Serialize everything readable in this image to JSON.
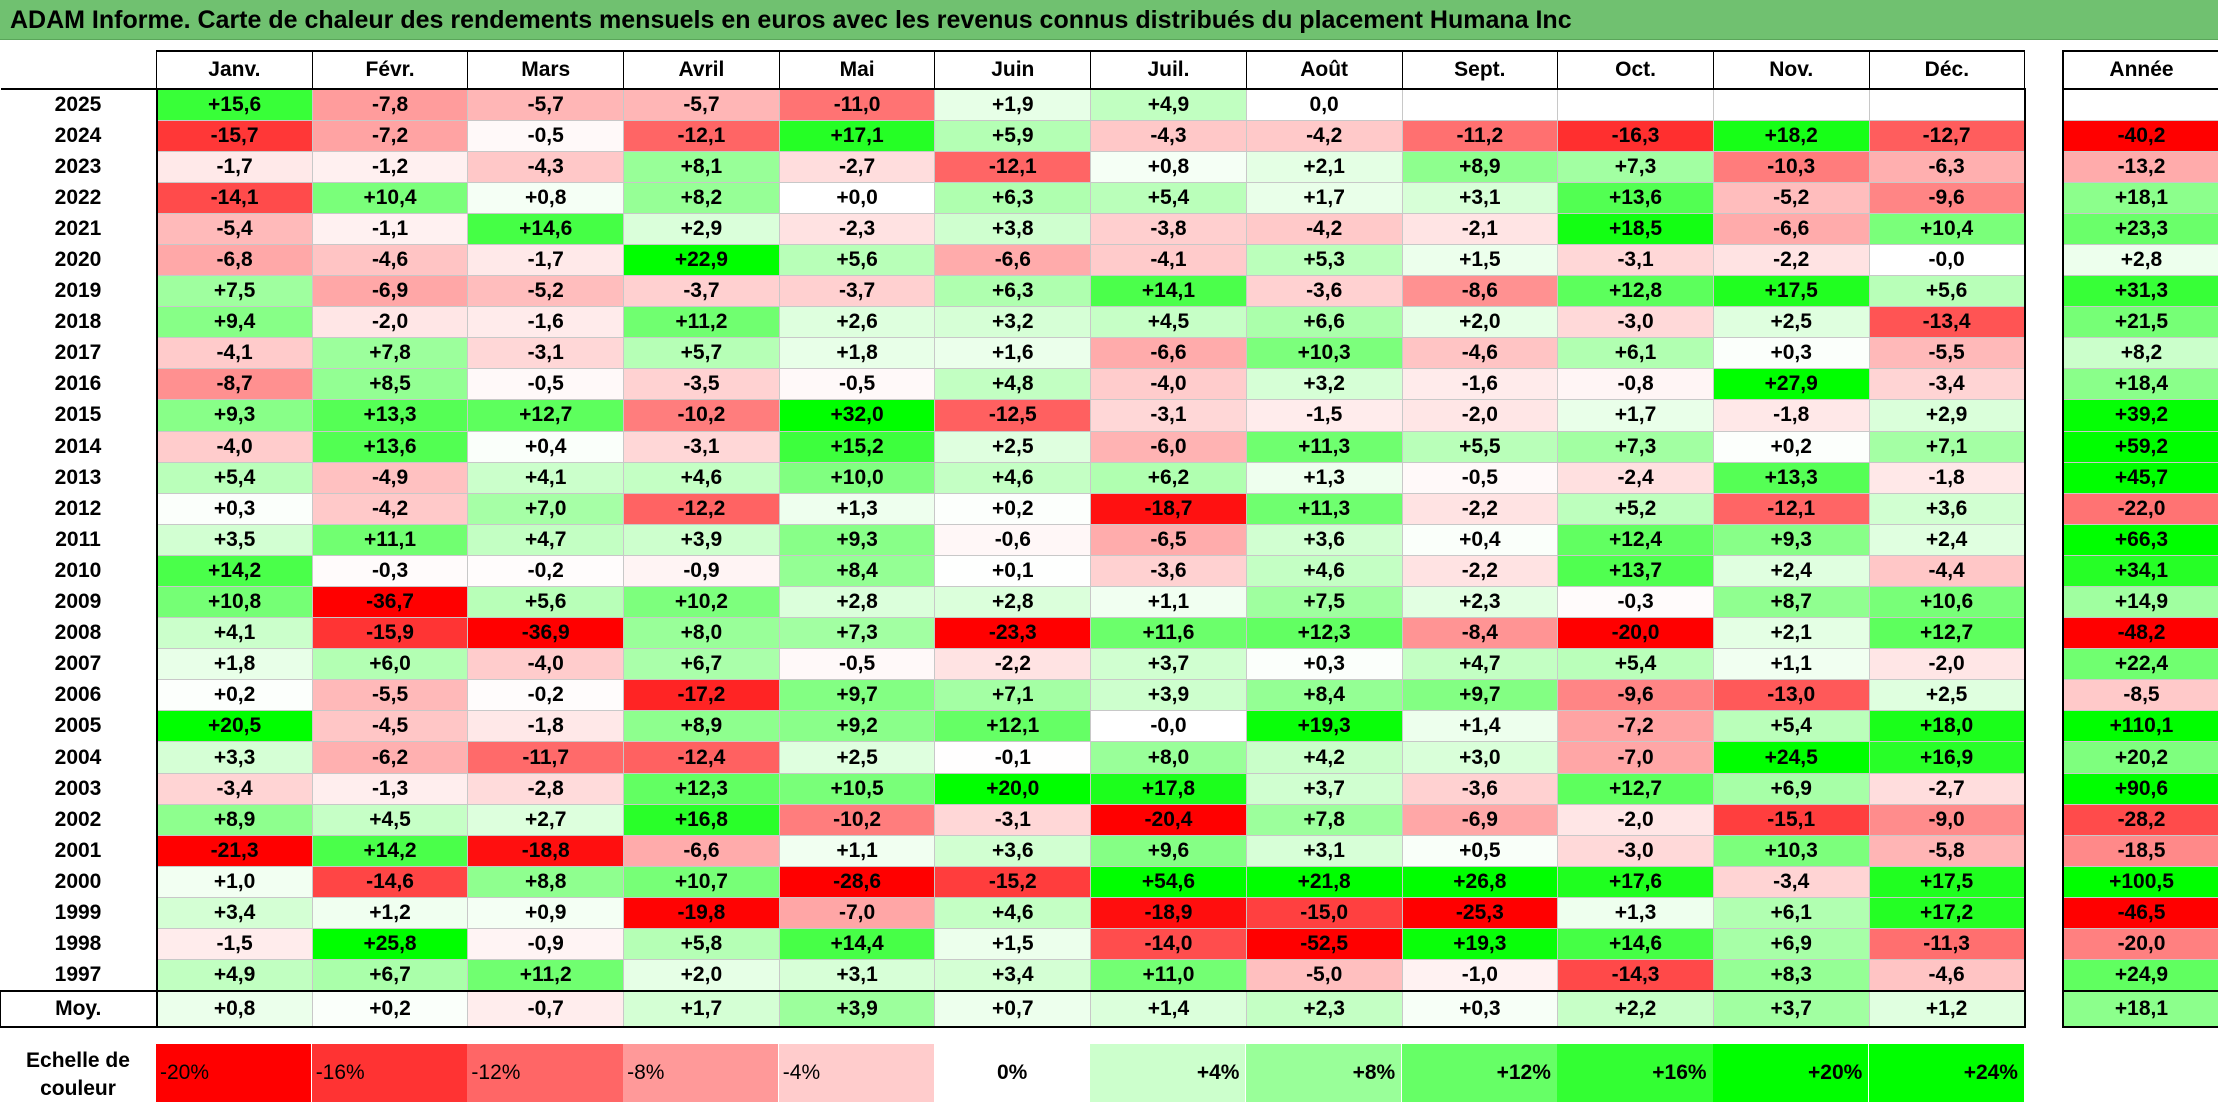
{
  "title": "ADAM Informe. Carte de chaleur des rendements mensuels en euros avec les revenus connus distribués du placement Humana Inc",
  "chart_data": {
    "type": "heatmap",
    "columns": [
      "Janv.",
      "Févr.",
      "Mars",
      "Avril",
      "Mai",
      "Juin",
      "Juil.",
      "Août",
      "Sept.",
      "Oct.",
      "Nov.",
      "Déc."
    ],
    "annual_header": "Année",
    "rows": [
      {
        "year": "2025",
        "values": [
          "+15,6",
          "-7,8",
          "-5,7",
          "-5,7",
          "-11,0",
          "+1,9",
          "+4,9",
          "0,0",
          "",
          "",
          "",
          ""
        ],
        "annual": ""
      },
      {
        "year": "2024",
        "values": [
          "-15,7",
          "-7,2",
          "-0,5",
          "-12,1",
          "+17,1",
          "+5,9",
          "-4,3",
          "-4,2",
          "-11,2",
          "-16,3",
          "+18,2",
          "-12,7"
        ],
        "annual": "-40,2"
      },
      {
        "year": "2023",
        "values": [
          "-1,7",
          "-1,2",
          "-4,3",
          "+8,1",
          "-2,7",
          "-12,1",
          "+0,8",
          "+2,1",
          "+8,9",
          "+7,3",
          "-10,3",
          "-6,3"
        ],
        "annual": "-13,2"
      },
      {
        "year": "2022",
        "values": [
          "-14,1",
          "+10,4",
          "+0,8",
          "+8,2",
          "+0,0",
          "+6,3",
          "+5,4",
          "+1,7",
          "+3,1",
          "+13,6",
          "-5,2",
          "-9,6"
        ],
        "annual": "+18,1"
      },
      {
        "year": "2021",
        "values": [
          "-5,4",
          "-1,1",
          "+14,6",
          "+2,9",
          "-2,3",
          "+3,8",
          "-3,8",
          "-4,2",
          "-2,1",
          "+18,5",
          "-6,6",
          "+10,4"
        ],
        "annual": "+23,3"
      },
      {
        "year": "2020",
        "values": [
          "-6,8",
          "-4,6",
          "-1,7",
          "+22,9",
          "+5,6",
          "-6,6",
          "-4,1",
          "+5,3",
          "+1,5",
          "-3,1",
          "-2,2",
          "-0,0"
        ],
        "annual": "+2,8"
      },
      {
        "year": "2019",
        "values": [
          "+7,5",
          "-6,9",
          "-5,2",
          "-3,7",
          "-3,7",
          "+6,3",
          "+14,1",
          "-3,6",
          "-8,6",
          "+12,8",
          "+17,5",
          "+5,6"
        ],
        "annual": "+31,3"
      },
      {
        "year": "2018",
        "values": [
          "+9,4",
          "-2,0",
          "-1,6",
          "+11,2",
          "+2,6",
          "+3,2",
          "+4,5",
          "+6,6",
          "+2,0",
          "-3,0",
          "+2,5",
          "-13,4"
        ],
        "annual": "+21,5"
      },
      {
        "year": "2017",
        "values": [
          "-4,1",
          "+7,8",
          "-3,1",
          "+5,7",
          "+1,8",
          "+1,6",
          "-6,6",
          "+10,3",
          "-4,6",
          "+6,1",
          "+0,3",
          "-5,5"
        ],
        "annual": "+8,2"
      },
      {
        "year": "2016",
        "values": [
          "-8,7",
          "+8,5",
          "-0,5",
          "-3,5",
          "-0,5",
          "+4,8",
          "-4,0",
          "+3,2",
          "-1,6",
          "-0,8",
          "+27,9",
          "-3,4"
        ],
        "annual": "+18,4"
      },
      {
        "year": "2015",
        "values": [
          "+9,3",
          "+13,3",
          "+12,7",
          "-10,2",
          "+32,0",
          "-12,5",
          "-3,1",
          "-1,5",
          "-2,0",
          "+1,7",
          "-1,8",
          "+2,9"
        ],
        "annual": "+39,2"
      },
      {
        "year": "2014",
        "values": [
          "-4,0",
          "+13,6",
          "+0,4",
          "-3,1",
          "+15,2",
          "+2,5",
          "-6,0",
          "+11,3",
          "+5,5",
          "+7,3",
          "+0,2",
          "+7,1"
        ],
        "annual": "+59,2"
      },
      {
        "year": "2013",
        "values": [
          "+5,4",
          "-4,9",
          "+4,1",
          "+4,6",
          "+10,0",
          "+4,6",
          "+6,2",
          "+1,3",
          "-0,5",
          "-2,4",
          "+13,3",
          "-1,8"
        ],
        "annual": "+45,7"
      },
      {
        "year": "2012",
        "values": [
          "+0,3",
          "-4,2",
          "+7,0",
          "-12,2",
          "+1,3",
          "+0,2",
          "-18,7",
          "+11,3",
          "-2,2",
          "+5,2",
          "-12,1",
          "+3,6"
        ],
        "annual": "-22,0"
      },
      {
        "year": "2011",
        "values": [
          "+3,5",
          "+11,1",
          "+4,7",
          "+3,9",
          "+9,3",
          "-0,6",
          "-6,5",
          "+3,6",
          "+0,4",
          "+12,4",
          "+9,3",
          "+2,4"
        ],
        "annual": "+66,3"
      },
      {
        "year": "2010",
        "values": [
          "+14,2",
          "-0,3",
          "-0,2",
          "-0,9",
          "+8,4",
          "+0,1",
          "-3,6",
          "+4,6",
          "-2,2",
          "+13,7",
          "+2,4",
          "-4,4"
        ],
        "annual": "+34,1"
      },
      {
        "year": "2009",
        "values": [
          "+10,8",
          "-36,7",
          "+5,6",
          "+10,2",
          "+2,8",
          "+2,8",
          "+1,1",
          "+7,5",
          "+2,3",
          "-0,3",
          "+8,7",
          "+10,6"
        ],
        "annual": "+14,9"
      },
      {
        "year": "2008",
        "values": [
          "+4,1",
          "-15,9",
          "-36,9",
          "+8,0",
          "+7,3",
          "-23,3",
          "+11,6",
          "+12,3",
          "-8,4",
          "-20,0",
          "+2,1",
          "+12,7"
        ],
        "annual": "-48,2"
      },
      {
        "year": "2007",
        "values": [
          "+1,8",
          "+6,0",
          "-4,0",
          "+6,7",
          "-0,5",
          "-2,2",
          "+3,7",
          "+0,3",
          "+4,7",
          "+5,4",
          "+1,1",
          "-2,0"
        ],
        "annual": "+22,4"
      },
      {
        "year": "2006",
        "values": [
          "+0,2",
          "-5,5",
          "-0,2",
          "-17,2",
          "+9,7",
          "+7,1",
          "+3,9",
          "+8,4",
          "+9,7",
          "-9,6",
          "-13,0",
          "+2,5"
        ],
        "annual": "-8,5"
      },
      {
        "year": "2005",
        "values": [
          "+20,5",
          "-4,5",
          "-1,8",
          "+8,9",
          "+9,2",
          "+12,1",
          "-0,0",
          "+19,3",
          "+1,4",
          "-7,2",
          "+5,4",
          "+18,0"
        ],
        "annual": "+110,1"
      },
      {
        "year": "2004",
        "values": [
          "+3,3",
          "-6,2",
          "-11,7",
          "-12,4",
          "+2,5",
          "-0,1",
          "+8,0",
          "+4,2",
          "+3,0",
          "-7,0",
          "+24,5",
          "+16,9"
        ],
        "annual": "+20,2"
      },
      {
        "year": "2003",
        "values": [
          "-3,4",
          "-1,3",
          "-2,8",
          "+12,3",
          "+10,5",
          "+20,0",
          "+17,8",
          "+3,7",
          "-3,6",
          "+12,7",
          "+6,9",
          "-2,7"
        ],
        "annual": "+90,6"
      },
      {
        "year": "2002",
        "values": [
          "+8,9",
          "+4,5",
          "+2,7",
          "+16,8",
          "-10,2",
          "-3,1",
          "-20,4",
          "+7,8",
          "-6,9",
          "-2,0",
          "-15,1",
          "-9,0"
        ],
        "annual": "-28,2"
      },
      {
        "year": "2001",
        "values": [
          "-21,3",
          "+14,2",
          "-18,8",
          "-6,6",
          "+1,1",
          "+3,6",
          "+9,6",
          "+3,1",
          "+0,5",
          "-3,0",
          "+10,3",
          "-5,8"
        ],
        "annual": "-18,5"
      },
      {
        "year": "2000",
        "values": [
          "+1,0",
          "-14,6",
          "+8,8",
          "+10,7",
          "-28,6",
          "-15,2",
          "+54,6",
          "+21,8",
          "+26,8",
          "+17,6",
          "-3,4",
          "+17,5"
        ],
        "annual": "+100,5"
      },
      {
        "year": "1999",
        "values": [
          "+3,4",
          "+1,2",
          "+0,9",
          "-19,8",
          "-7,0",
          "+4,6",
          "-18,9",
          "-15,0",
          "-25,3",
          "+1,3",
          "+6,1",
          "+17,2"
        ],
        "annual": "-46,5"
      },
      {
        "year": "1998",
        "values": [
          "-1,5",
          "+25,8",
          "-0,9",
          "+5,8",
          "+14,4",
          "+1,5",
          "-14,0",
          "-52,5",
          "+19,3",
          "+14,6",
          "+6,9",
          "-11,3"
        ],
        "annual": "-20,0"
      },
      {
        "year": "1997",
        "values": [
          "+4,9",
          "+6,7",
          "+11,2",
          "+2,0",
          "+3,1",
          "+3,4",
          "+11,0",
          "-5,0",
          "-1,0",
          "-14,3",
          "+8,3",
          "-4,6"
        ],
        "annual": "+24,9"
      }
    ],
    "average_row": {
      "label": "Moy.",
      "values": [
        "+0,8",
        "+0,2",
        "-0,7",
        "+1,7",
        "+3,9",
        "+0,7",
        "+1,4",
        "+2,3",
        "+0,3",
        "+2,2",
        "+3,7",
        "+1,2"
      ],
      "annual": "+18,1"
    },
    "color_scale": {
      "label_line1": "Echelle de",
      "label_line2": "couleur",
      "steps": [
        {
          "label": "-20%",
          "value": -20
        },
        {
          "label": "-16%",
          "value": -16
        },
        {
          "label": "-12%",
          "value": -12
        },
        {
          "label": "-8%",
          "value": -8
        },
        {
          "label": "-4%",
          "value": -4
        },
        {
          "label": "0%",
          "value": 0
        },
        {
          "label": "+4%",
          "value": 4
        },
        {
          "label": "+8%",
          "value": 8
        },
        {
          "label": "+12%",
          "value": 12
        },
        {
          "label": "+16%",
          "value": 16
        },
        {
          "label": "+20%",
          "value": 20
        },
        {
          "label": "+24%",
          "value": 24
        }
      ],
      "negative_color": "#ff0000",
      "neutral_color": "#ffffff",
      "positive_color": "#00ff00"
    }
  }
}
